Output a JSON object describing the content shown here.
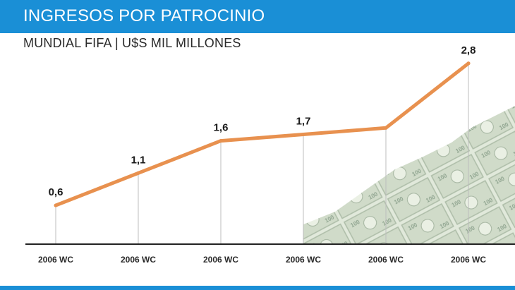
{
  "header": {
    "title": "INGRESOS POR PATROCINIO"
  },
  "chart_data": {
    "type": "line",
    "title": "INGRESOS POR PATROCINIO",
    "subtitle": "MUNDIAL FIFA | U$S MIL MILLONES",
    "categories": [
      "2006 WC",
      "2006 WC",
      "2006 WC",
      "2006 WC",
      "2006 WC",
      "2006 WC"
    ],
    "values": [
      0.6,
      1.1,
      1.6,
      1.7,
      1.8,
      2.8
    ],
    "data_labels": [
      "0,6",
      "1,1",
      "1,6",
      "1,7",
      "",
      "2,8"
    ],
    "ylim": [
      0,
      3.0
    ],
    "grid": false,
    "legend": "none",
    "colors": {
      "line": "#e8914f",
      "header": "#1a8fd6",
      "axis": "#222222",
      "guide": "#bdbdbd"
    },
    "background_image": "money-bills-icon"
  }
}
